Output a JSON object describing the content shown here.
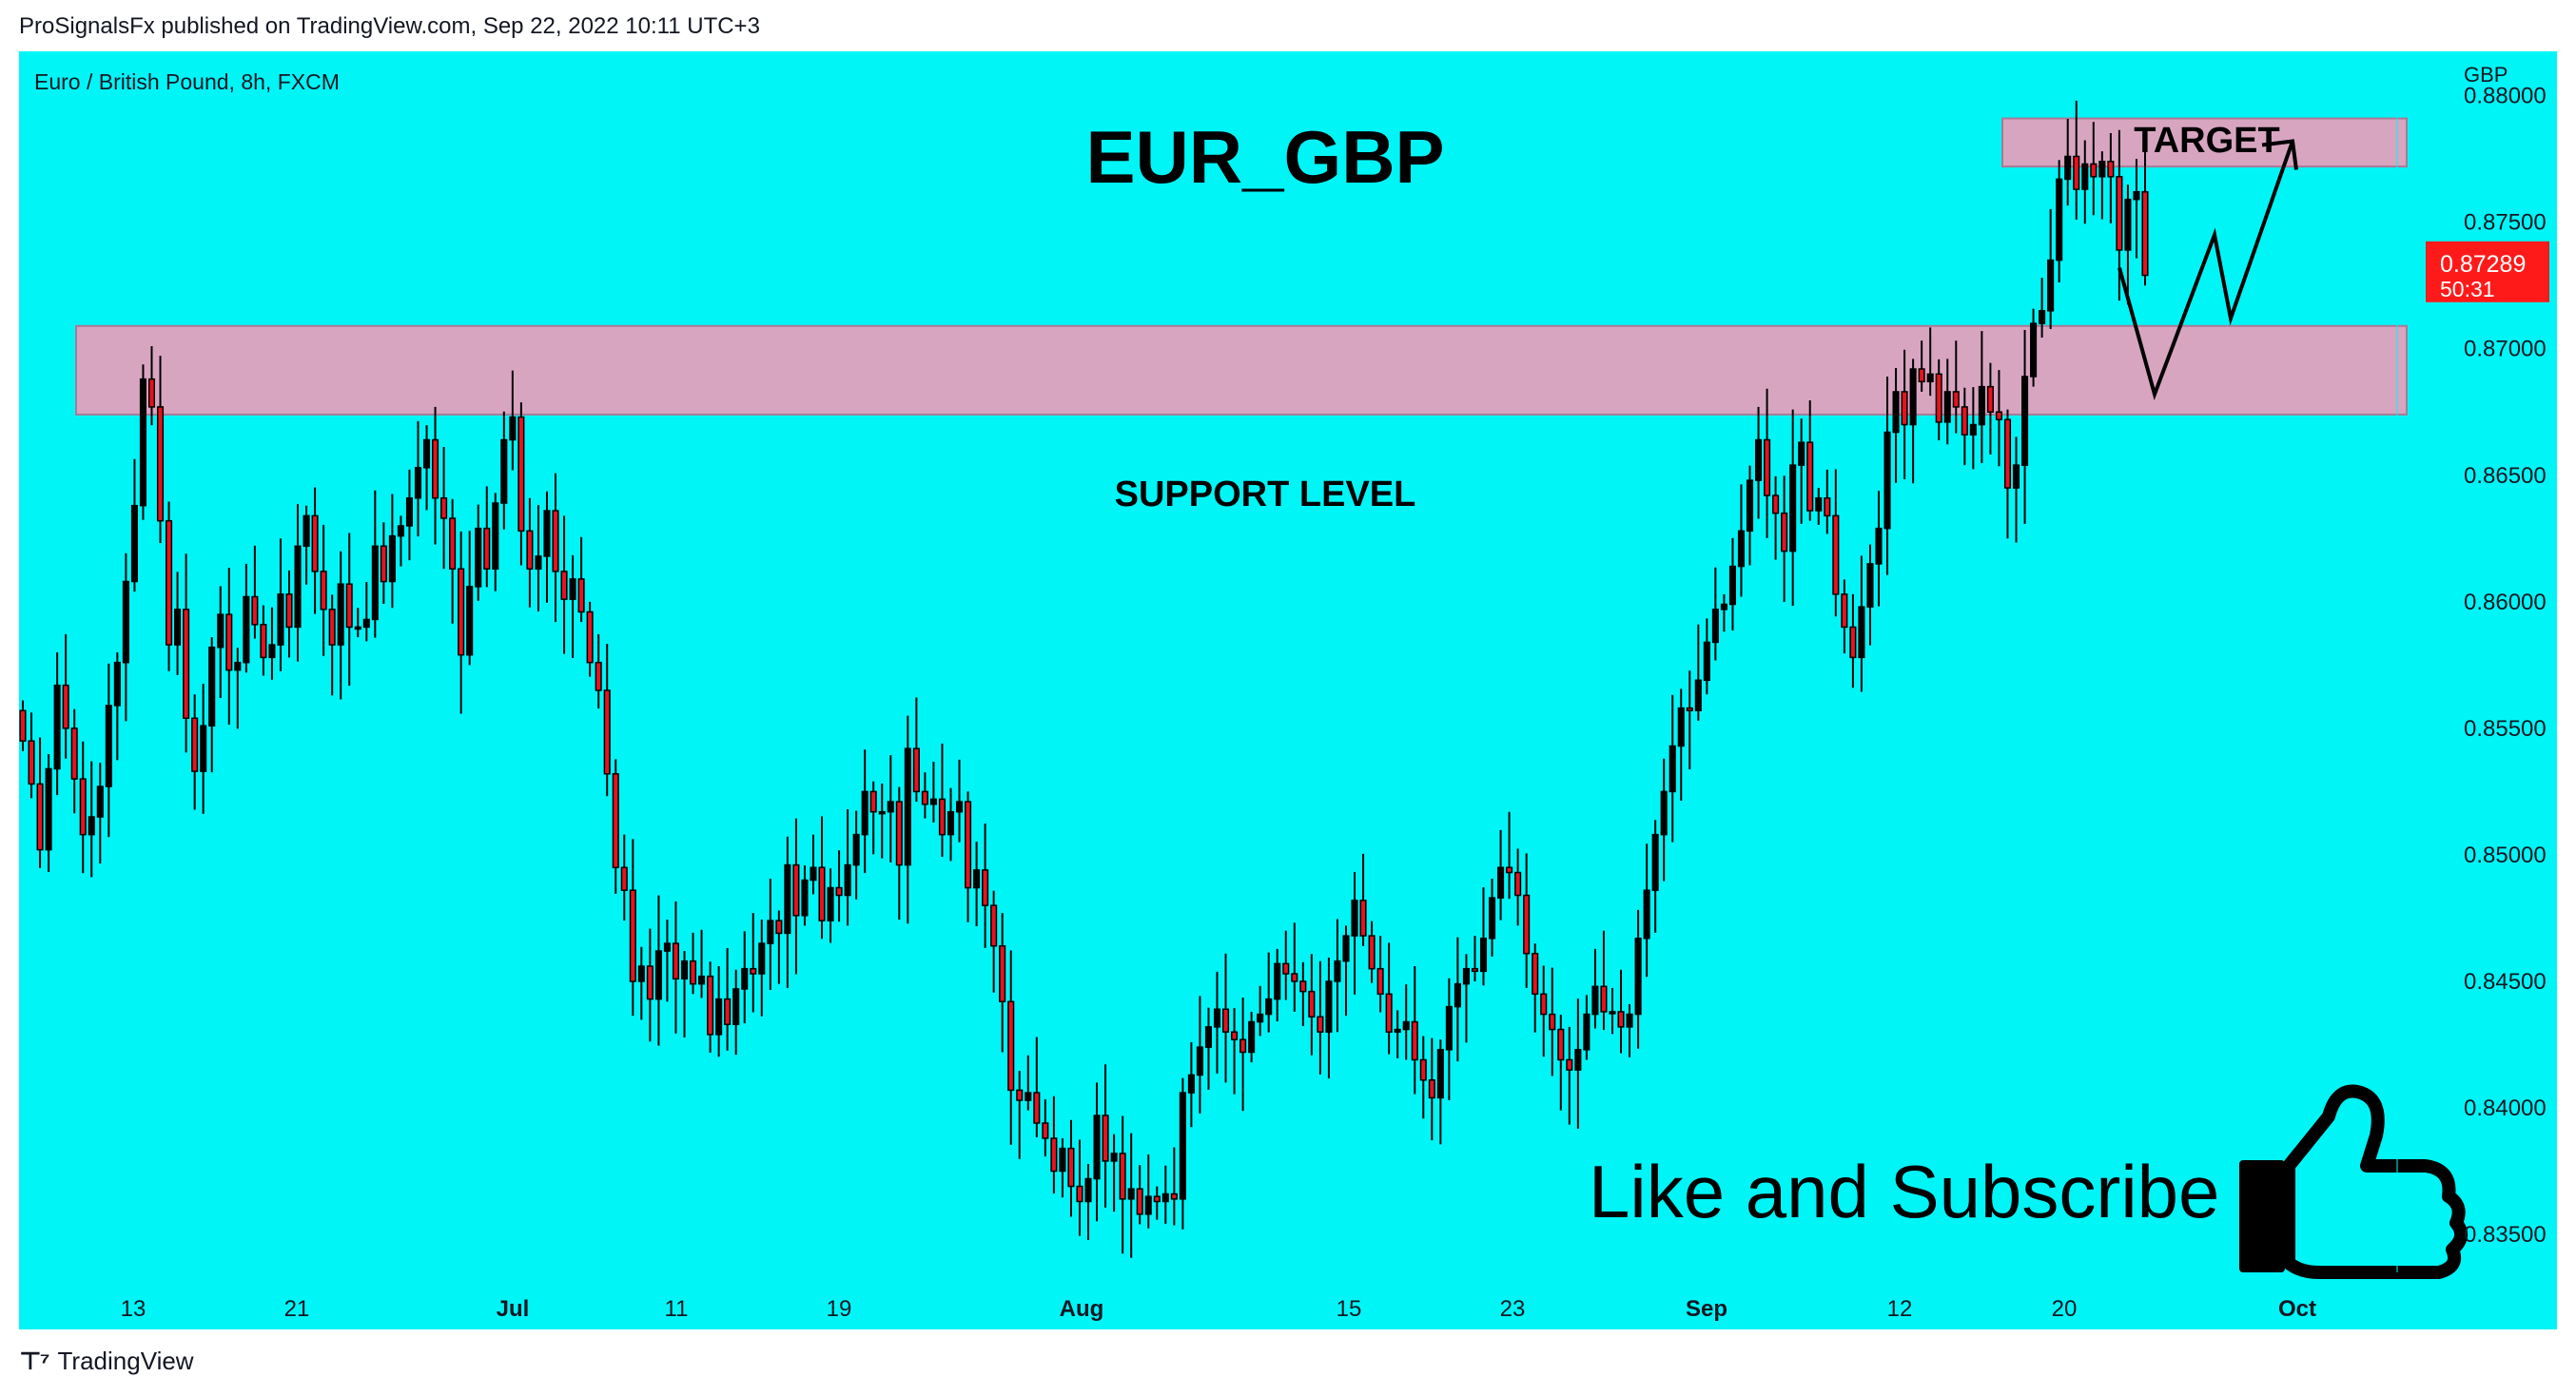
{
  "header": {
    "published_text": "ProSignalsFx published on TradingView.com, Sep 22, 2022 10:11 UTC+3"
  },
  "footer": {
    "logo_text": "TradingView",
    "logo_icon": "tradingview-logo-icon"
  },
  "colors": {
    "background": "#00f5f7",
    "up_candle": "#000000",
    "down_candle": "#e8121e",
    "zone_fill": "#d8a5c1",
    "price_label": "#ff1a1a"
  },
  "chart_data": {
    "type": "candlestick",
    "symbol_line": "Euro / British Pound, 8h, FXCM",
    "currency": "GBP",
    "ylim": [
      0.8335,
      0.881
    ],
    "y_ticks": [
      "0.88000",
      "0.87500",
      "0.87000",
      "0.86500",
      "0.86000",
      "0.85500",
      "0.85000",
      "0.84500",
      "0.84000",
      "0.83500"
    ],
    "x_ticks": [
      "13",
      "21",
      "Jul",
      "11",
      "19",
      "Aug",
      "15",
      "23",
      "Sep",
      "12",
      "20",
      "Oct"
    ],
    "current_price": "0.87289",
    "countdown": "50:31",
    "annotations": {
      "title": "EUR_GBP",
      "target_label": "TARGET",
      "support_label": "SUPPORT LEVEL",
      "cta_text": "Like and Subscribe",
      "cta_icon": "thumbs-up-icon"
    },
    "zones": [
      {
        "name": "target-zone",
        "low": 0.8772,
        "high": 0.8791
      },
      {
        "name": "support-zone",
        "low": 0.8674,
        "high": 0.8709
      }
    ],
    "projection_path": [
      0.8732,
      0.8682,
      0.8745,
      0.8712,
      0.8782
    ],
    "closes": [
      0.8545,
      0.8528,
      0.8502,
      0.8534,
      0.8567,
      0.855,
      0.853,
      0.8508,
      0.8515,
      0.8527,
      0.8559,
      0.8576,
      0.8608,
      0.8638,
      0.8688,
      0.8677,
      0.8632,
      0.8583,
      0.8597,
      0.8554,
      0.8533,
      0.8551,
      0.8582,
      0.8595,
      0.8573,
      0.8576,
      0.8602,
      0.8591,
      0.8578,
      0.8583,
      0.8603,
      0.859,
      0.8622,
      0.8634,
      0.8612,
      0.8597,
      0.8583,
      0.8607,
      0.859,
      0.859,
      0.8593,
      0.8622,
      0.8608,
      0.8626,
      0.863,
      0.8641,
      0.8653,
      0.8664,
      0.8641,
      0.8633,
      0.8613,
      0.8579,
      0.8606,
      0.8629,
      0.8613,
      0.8639,
      0.8664,
      0.8673,
      0.8628,
      0.8613,
      0.8618,
      0.8636,
      0.8612,
      0.8601,
      0.8609,
      0.8596,
      0.8576,
      0.8565,
      0.8532,
      0.8495,
      0.8486,
      0.845,
      0.8456,
      0.8443,
      0.8462,
      0.8465,
      0.8451,
      0.8458,
      0.8449,
      0.8452,
      0.8429,
      0.8443,
      0.8433,
      0.8447,
      0.8455,
      0.8453,
      0.8465,
      0.8474,
      0.8469,
      0.8496,
      0.8476,
      0.849,
      0.8495,
      0.8474,
      0.8487,
      0.8484,
      0.8496,
      0.8508,
      0.8525,
      0.8517,
      0.8517,
      0.8521,
      0.8496,
      0.8542,
      0.8525,
      0.852,
      0.8522,
      0.8508,
      0.8517,
      0.8521,
      0.8487,
      0.8494,
      0.848,
      0.8464,
      0.8442,
      0.8407,
      0.8403,
      0.8406,
      0.8394,
      0.8388,
      0.8375,
      0.8384,
      0.8369,
      0.8363,
      0.8372,
      0.8397,
      0.8379,
      0.8382,
      0.8364,
      0.8368,
      0.8358,
      0.8365,
      0.8363,
      0.8366,
      0.8364,
      0.8406,
      0.8413,
      0.8424,
      0.8432,
      0.8439,
      0.843,
      0.8427,
      0.8422,
      0.8434,
      0.8437,
      0.8443,
      0.8457,
      0.8453,
      0.845,
      0.8446,
      0.8436,
      0.843,
      0.845,
      0.8458,
      0.8468,
      0.8482,
      0.8468,
      0.8455,
      0.8445,
      0.843,
      0.8431,
      0.8434,
      0.8419,
      0.8411,
      0.8404,
      0.8423,
      0.844,
      0.8449,
      0.8455,
      0.8454,
      0.8467,
      0.8483,
      0.8495,
      0.8493,
      0.8484,
      0.8461,
      0.8445,
      0.8437,
      0.8431,
      0.8419,
      0.8415,
      0.8423,
      0.8437,
      0.8448,
      0.8438,
      0.8438,
      0.8432,
      0.8437,
      0.8467,
      0.8486,
      0.8508,
      0.8525,
      0.8543,
      0.8558,
      0.8557,
      0.8569,
      0.8584,
      0.8597,
      0.8599,
      0.8614,
      0.8628,
      0.8648,
      0.8664,
      0.8642,
      0.8635,
      0.862,
      0.8654,
      0.8663,
      0.8636,
      0.8641,
      0.8634,
      0.8603,
      0.859,
      0.8578,
      0.8598,
      0.8615,
      0.8629,
      0.8667,
      0.8683,
      0.867,
      0.8692,
      0.8687,
      0.869,
      0.8671,
      0.8683,
      0.8677,
      0.8666,
      0.867,
      0.8685,
      0.8675,
      0.8672,
      0.8645,
      0.8654,
      0.8689,
      0.871,
      0.8715,
      0.8735,
      0.8767,
      0.8776,
      0.8763,
      0.8773,
      0.8768,
      0.8774,
      0.8768,
      0.8739,
      0.8759,
      0.8762,
      0.8729
    ]
  }
}
